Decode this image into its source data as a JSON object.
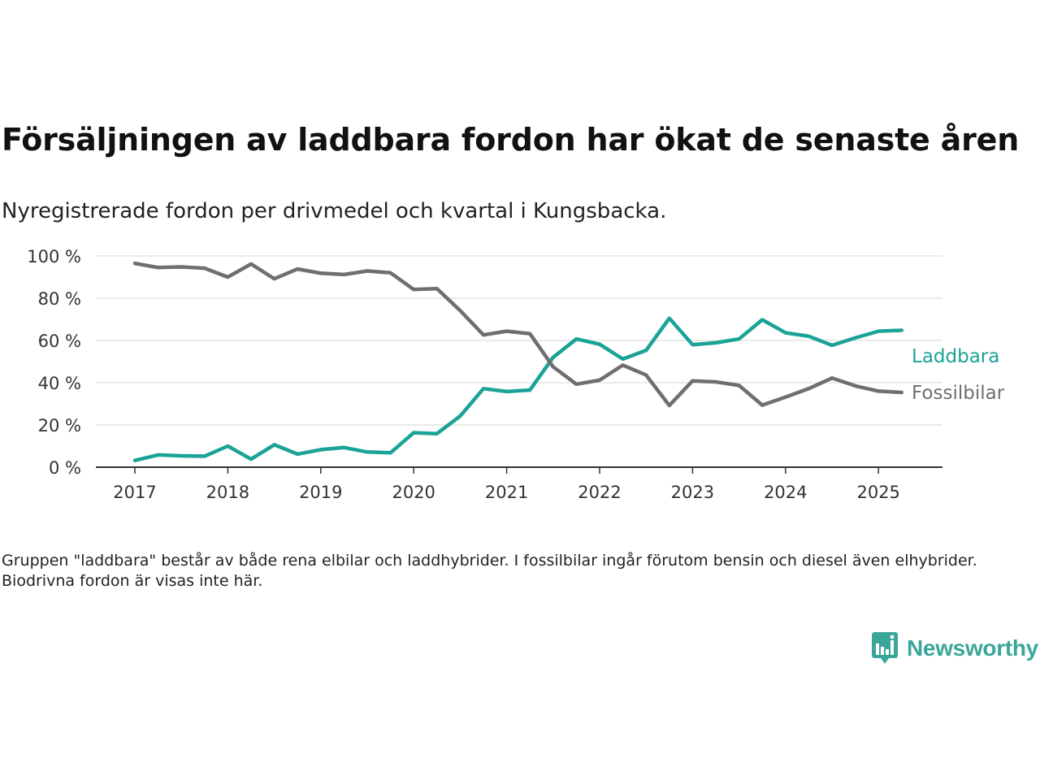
{
  "title": "Försäljningen av laddbara fordon har ökat de senaste åren",
  "subtitle": "Nyregistrerade fordon per drivmedel och kvartal i Kungsbacka.",
  "note": "Gruppen \"laddbara\" består av både rena elbilar och laddhybrider. I fossilbilar ingår förutom bensin och diesel även elhybrider. Biodrivna fordon är visas inte här.",
  "brand": {
    "name": "Newsworthy",
    "color": "#3aa69a",
    "icon": "newsworthy-chart-bubble-icon"
  },
  "chart_data": {
    "type": "line",
    "x_labels": [
      "2017",
      "2018",
      "2019",
      "2020",
      "2021",
      "2022",
      "2023",
      "2024",
      "2025"
    ],
    "y_ticks": [
      "0 %",
      "20 %",
      "40 %",
      "60 %",
      "80 %",
      "100 %"
    ],
    "y_tick_values": [
      0,
      20,
      40,
      60,
      80,
      100
    ],
    "ylim": [
      0,
      100
    ],
    "grid": true,
    "legend": "direct-labels-right",
    "quarters": [
      "2017 Q1",
      "2017 Q2",
      "2017 Q3",
      "2017 Q4",
      "2018 Q1",
      "2018 Q2",
      "2018 Q3",
      "2018 Q4",
      "2019 Q1",
      "2019 Q2",
      "2019 Q3",
      "2019 Q4",
      "2020 Q1",
      "2020 Q2",
      "2020 Q3",
      "2020 Q4",
      "2021 Q1",
      "2021 Q2",
      "2021 Q3",
      "2021 Q4",
      "2022 Q1",
      "2022 Q2",
      "2022 Q3",
      "2022 Q4",
      "2023 Q1",
      "2023 Q2",
      "2023 Q3",
      "2023 Q4",
      "2024 Q1",
      "2024 Q2",
      "2024 Q3",
      "2024 Q4",
      "2025 Q1",
      "2025 Q2"
    ],
    "series": [
      {
        "name": "Laddbara",
        "color": "#1aa396",
        "values": [
          3.2,
          5.8,
          5.4,
          5.2,
          10,
          3.8,
          10.6,
          6.2,
          8.3,
          9.3,
          7.2,
          6.8,
          16.3,
          15.9,
          24.2,
          37.2,
          35.8,
          36.5,
          52,
          60.7,
          58.2,
          51.2,
          55.3,
          70.5,
          58,
          58.9,
          60.7,
          69.8,
          63.6,
          62,
          57.7,
          61.2,
          64.4,
          64.8
        ]
      },
      {
        "name": "Fossilbilar",
        "color": "#6e6e73",
        "values": [
          96.5,
          94.5,
          94.8,
          94.2,
          90,
          96.2,
          89.2,
          93.8,
          91.8,
          91.2,
          92.9,
          92,
          84.1,
          84.5,
          74.1,
          62.6,
          64.4,
          63.2,
          47.5,
          39.3,
          41.2,
          48.3,
          43.6,
          29.2,
          40.9,
          40.4,
          38.7,
          29.4,
          33.2,
          37.2,
          42.2,
          38.5,
          36,
          35.4
        ]
      }
    ]
  }
}
